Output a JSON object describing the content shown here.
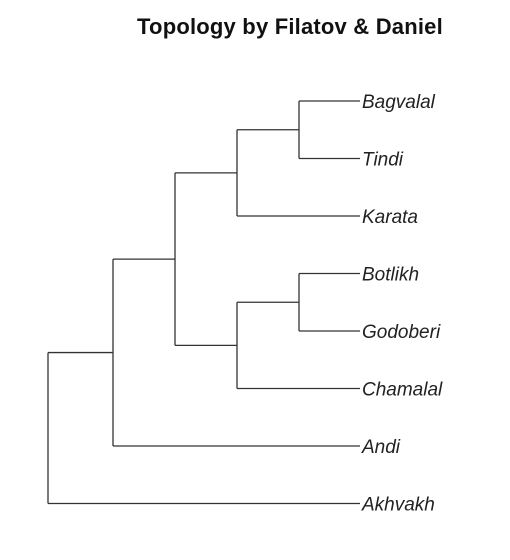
{
  "title": "Topology by Filatov & Daniel",
  "tree": {
    "taxa": [
      "Bagvalal",
      "Tindi",
      "Karata",
      "Botlikh",
      "Godoberi",
      "Chamalal",
      "Andi",
      "Akhvakh"
    ],
    "newick": "(Akhvakh,(Andi,(((Bagvalal,Tindi),Karata),((Botlikh,Godoberi),Chamalal))));"
  }
}
